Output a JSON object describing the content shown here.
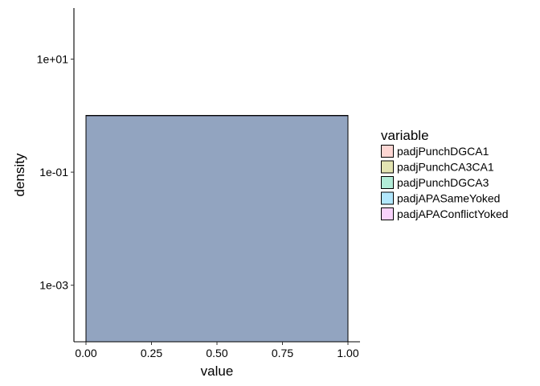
{
  "chart_data": {
    "type": "area",
    "xlabel": "value",
    "ylabel": "density",
    "y_scale": "log10",
    "xlim": [
      0,
      1
    ],
    "ylim": [
      0.0001,
      80
    ],
    "x_ticks": [
      {
        "value": 0,
        "label": "0.00"
      },
      {
        "value": 0.25,
        "label": "0.25"
      },
      {
        "value": 0.5,
        "label": "0.50"
      },
      {
        "value": 0.75,
        "label": "0.75"
      },
      {
        "value": 1,
        "label": "1.00"
      }
    ],
    "y_ticks": [
      {
        "value": 0.001,
        "label": "1e-03"
      },
      {
        "value": 0.1,
        "label": "1e-01"
      },
      {
        "value": 10,
        "label": "1e+01"
      }
    ],
    "grid": false,
    "legend": {
      "title": "variable",
      "position": "right"
    },
    "series": [
      {
        "name": "padjPunchDGCA1",
        "color": "#F8766D",
        "points": [
          [
            0,
            1.0
          ],
          [
            1,
            1.0
          ]
        ]
      },
      {
        "name": "padjPunchCA3CA1",
        "color": "#A3A500",
        "points": [
          [
            0,
            1.0
          ],
          [
            1,
            1.0
          ]
        ]
      },
      {
        "name": "padjPunchDGCA3",
        "color": "#00BF7D",
        "points": [
          [
            0,
            1.0
          ],
          [
            1,
            1.0
          ]
        ]
      },
      {
        "name": "padjAPASameYoked",
        "color": "#00B0F6",
        "points": [
          [
            0,
            1.0
          ],
          [
            1,
            1.0
          ]
        ]
      },
      {
        "name": "padjAPAConflictYoked",
        "color": "#E76BF3",
        "points": [
          [
            0,
            1.0
          ],
          [
            1,
            1.0
          ]
        ]
      }
    ]
  }
}
